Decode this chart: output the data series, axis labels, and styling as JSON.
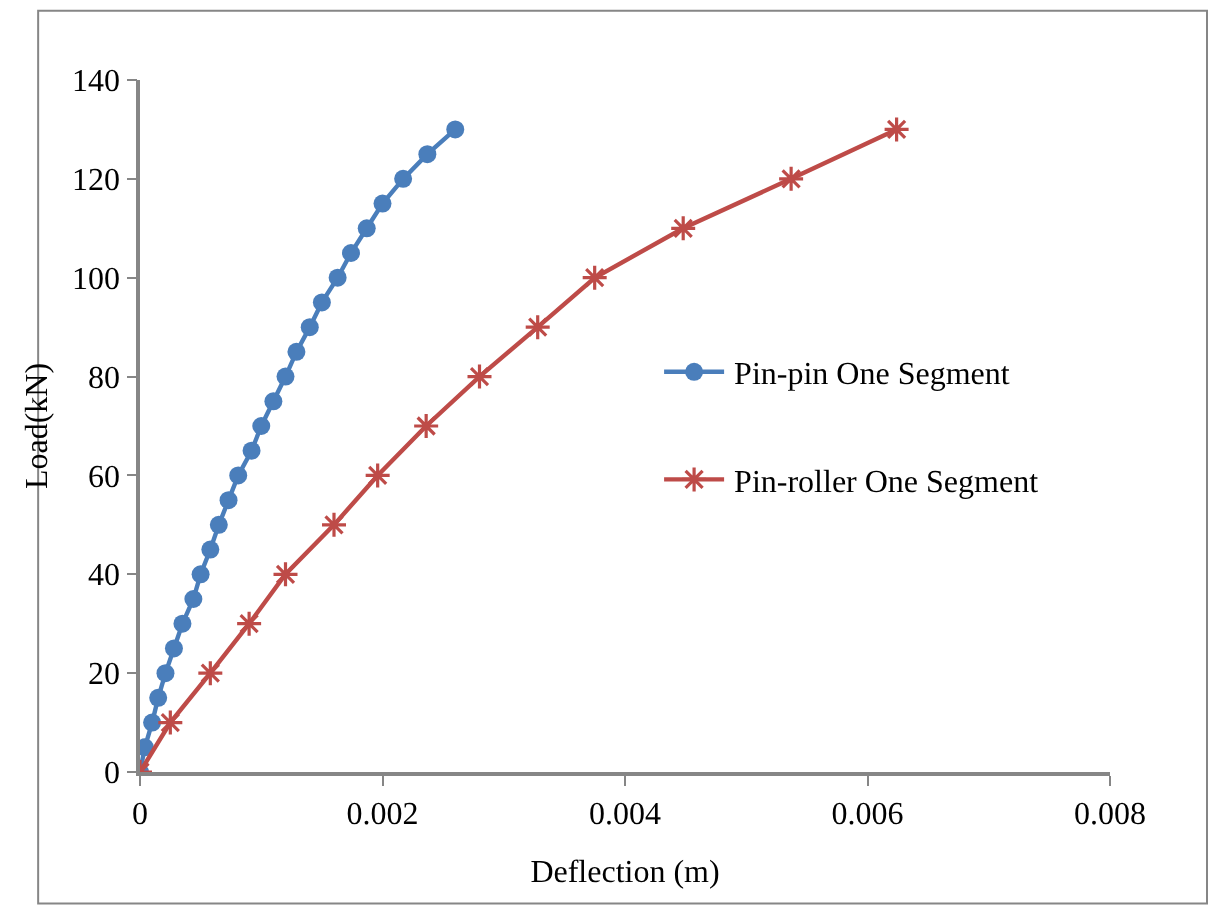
{
  "chart_data": {
    "type": "line",
    "xlabel": "Deflection (m)",
    "ylabel": "Load(kN)",
    "xlim": [
      0,
      0.008
    ],
    "xticks": [
      0,
      0.002,
      0.004,
      0.006,
      0.008
    ],
    "ylim": [
      0,
      140
    ],
    "yticks": [
      0,
      20,
      40,
      60,
      80,
      100,
      120,
      140
    ],
    "legend": "right",
    "line_style": "solid",
    "series": [
      {
        "name": "Pin-pin One Segment",
        "color": "#4a7ebb",
        "marker": "circle",
        "x": [
          0,
          4e-05,
          0.0001,
          0.00015,
          0.00021,
          0.00028,
          0.00035,
          0.00044,
          0.0005,
          0.00058,
          0.00065,
          0.00073,
          0.00081,
          0.00092,
          0.001,
          0.0011,
          0.0012,
          0.00129,
          0.0014,
          0.0015,
          0.00163,
          0.00174,
          0.00187,
          0.002,
          0.00217,
          0.00237,
          0.0026
        ],
        "values": [
          0,
          5,
          10,
          15,
          20,
          25,
          30,
          35,
          40,
          45,
          50,
          55,
          60,
          65,
          70,
          75,
          80,
          85,
          90,
          95,
          100,
          105,
          110,
          115,
          120,
          125,
          130
        ]
      },
      {
        "name": "Pin-roller One Segment",
        "color": "#be4b48",
        "marker": "cross",
        "x": [
          0,
          0.00025,
          0.00058,
          0.0009,
          0.0012,
          0.0016,
          0.00196,
          0.00236,
          0.0028,
          0.00328,
          0.00375,
          0.00448,
          0.00537,
          0.00624
        ],
        "values": [
          0,
          10,
          20,
          30,
          40,
          50,
          60,
          70,
          80,
          90,
          100,
          110,
          120,
          130
        ]
      }
    ]
  }
}
